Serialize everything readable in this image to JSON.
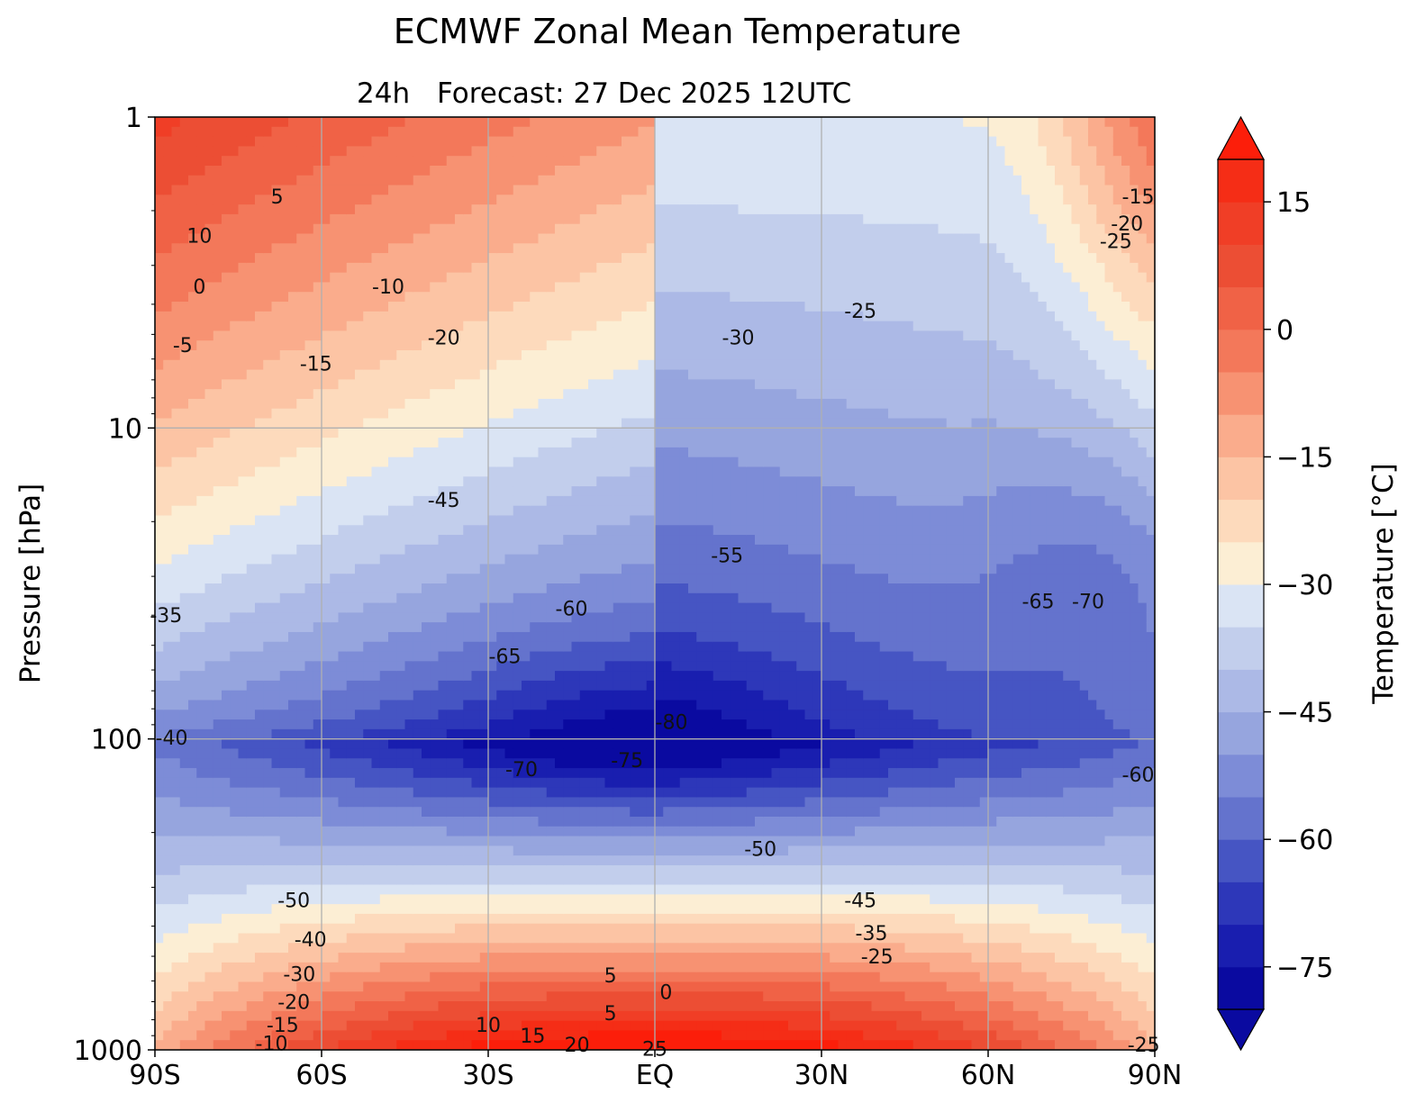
{
  "chart_data": {
    "type": "contour",
    "title": "ECMWF Zonal Mean Temperature",
    "subtitle_prefix": "24h",
    "subtitle_main": "Forecast:  27 Dec 2025  12UTC",
    "ylabel": "Pressure [hPa]",
    "colorbar_label": "Temperature [°C]",
    "x_ticks": [
      "90S",
      "60S",
      "30S",
      "EQ",
      "30N",
      "60N",
      "90N"
    ],
    "x_values": [
      -90,
      -60,
      -30,
      0,
      30,
      60,
      90
    ],
    "y_ticks": [
      "1",
      "10",
      "100",
      "1000"
    ],
    "y_values": [
      1,
      10,
      100,
      1000
    ],
    "y_scale": "log",
    "ylim": [
      1000,
      1
    ],
    "grid": true,
    "colorbar_ticks": [
      "15",
      "0",
      "−15",
      "−30",
      "−45",
      "−60",
      "−75"
    ],
    "colorbar_tick_values": [
      15,
      0,
      -15,
      -30,
      -45,
      -60,
      -75
    ],
    "colorbar_range": [
      -80,
      20
    ],
    "colorbar_extend": "both",
    "contour_interval": 5,
    "contour_labels": [
      {
        "text": "10",
        "lat": -82,
        "p": 2.4
      },
      {
        "text": "5",
        "lat": -68,
        "p": 1.8
      },
      {
        "text": "0",
        "lat": -82,
        "p": 3.5
      },
      {
        "text": "-5",
        "lat": -85,
        "p": 5.4
      },
      {
        "text": "-10",
        "lat": -48,
        "p": 3.5
      },
      {
        "text": "-15",
        "lat": -61,
        "p": 6.2
      },
      {
        "text": "-20",
        "lat": -38,
        "p": 5.1
      },
      {
        "text": "-25",
        "lat": 37,
        "p": 4.2
      },
      {
        "text": "-30",
        "lat": 15,
        "p": 5.1
      },
      {
        "text": "-25",
        "lat": 83,
        "p": 2.5
      },
      {
        "text": "-20",
        "lat": 85,
        "p": 2.2
      },
      {
        "text": "-15",
        "lat": 87,
        "p": 1.8
      },
      {
        "text": "-35",
        "lat": -88,
        "p": 40
      },
      {
        "text": "-40",
        "lat": -87,
        "p": 99
      },
      {
        "text": "-45",
        "lat": -38,
        "p": 17
      },
      {
        "text": "-55",
        "lat": 13,
        "p": 25.6
      },
      {
        "text": "-60",
        "lat": -15,
        "p": 38
      },
      {
        "text": "-65",
        "lat": -27,
        "p": 54
      },
      {
        "text": "-70",
        "lat": -24,
        "p": 125
      },
      {
        "text": "-75",
        "lat": -5,
        "p": 117
      },
      {
        "text": "-80",
        "lat": 3,
        "p": 88
      },
      {
        "text": "-65",
        "lat": 69,
        "p": 36
      },
      {
        "text": "-70",
        "lat": 78,
        "p": 36
      },
      {
        "text": "-60",
        "lat": 87,
        "p": 130
      },
      {
        "text": "-50",
        "lat": 19,
        "p": 225
      },
      {
        "text": "-45",
        "lat": 37,
        "p": 330
      },
      {
        "text": "-35",
        "lat": 39,
        "p": 420
      },
      {
        "text": "-25",
        "lat": 40,
        "p": 500
      },
      {
        "text": "-50",
        "lat": -65,
        "p": 330
      },
      {
        "text": "-40",
        "lat": -62,
        "p": 440
      },
      {
        "text": "-30",
        "lat": -64,
        "p": 570
      },
      {
        "text": "-20",
        "lat": -65,
        "p": 700
      },
      {
        "text": "-15",
        "lat": -67,
        "p": 830
      },
      {
        "text": "-10",
        "lat": -69,
        "p": 950
      },
      {
        "text": "5",
        "lat": -8,
        "p": 575
      },
      {
        "text": "0",
        "lat": 2,
        "p": 650
      },
      {
        "text": "5",
        "lat": -8,
        "p": 760
      },
      {
        "text": "10",
        "lat": -30,
        "p": 830
      },
      {
        "text": "15",
        "lat": -22,
        "p": 900
      },
      {
        "text": "20",
        "lat": -14,
        "p": 960
      },
      {
        "text": "25",
        "lat": 0,
        "p": 990
      },
      {
        "text": "-25",
        "lat": 88,
        "p": 960
      }
    ]
  }
}
